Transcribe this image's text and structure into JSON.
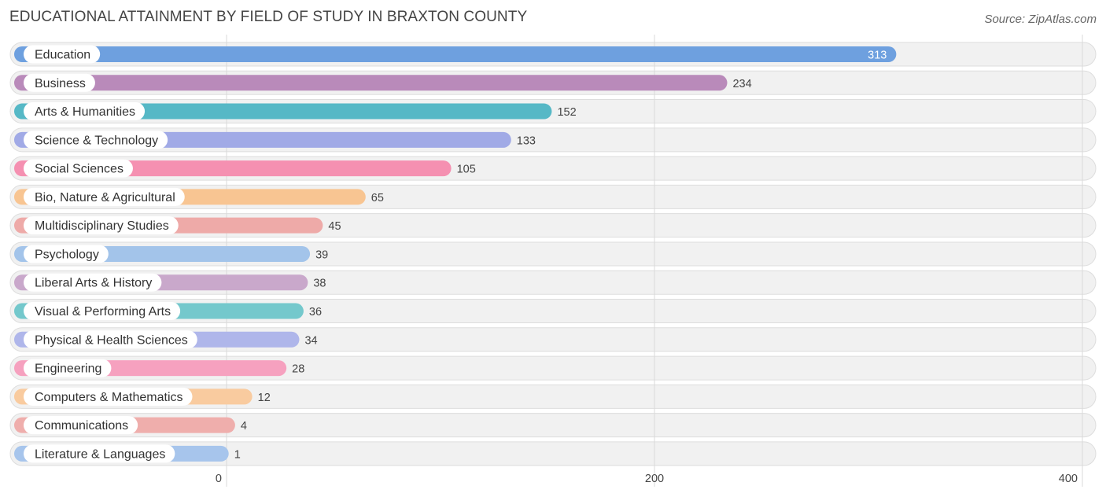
{
  "title": "EDUCATIONAL ATTAINMENT BY FIELD OF STUDY IN BRAXTON COUNTY",
  "source": "Source: ZipAtlas.com",
  "chart_data": {
    "type": "bar",
    "orientation": "horizontal",
    "title": "EDUCATIONAL ATTAINMENT BY FIELD OF STUDY IN BRAXTON COUNTY",
    "categories": [
      "Education",
      "Business",
      "Arts & Humanities",
      "Science & Technology",
      "Social Sciences",
      "Bio, Nature & Agricultural",
      "Multidisciplinary Studies",
      "Psychology",
      "Liberal Arts & History",
      "Visual & Performing Arts",
      "Physical & Health Sciences",
      "Engineering",
      "Computers & Mathematics",
      "Communications",
      "Literature & Languages"
    ],
    "values": [
      313,
      234,
      152,
      133,
      105,
      65,
      45,
      39,
      38,
      36,
      34,
      28,
      12,
      4,
      1
    ],
    "colors": [
      "#6ea0df",
      "#b98aba",
      "#56b8c6",
      "#a1aae6",
      "#f590b1",
      "#f8c592",
      "#eeaaa8",
      "#a3c4ea",
      "#c9a8cb",
      "#74c8cc",
      "#afb6ea",
      "#f6a1bf",
      "#f9cb9f",
      "#efaeac",
      "#a7c5ec"
    ],
    "xlim": [
      0,
      400
    ],
    "xticks": [
      0,
      200,
      400
    ],
    "grid": true
  }
}
